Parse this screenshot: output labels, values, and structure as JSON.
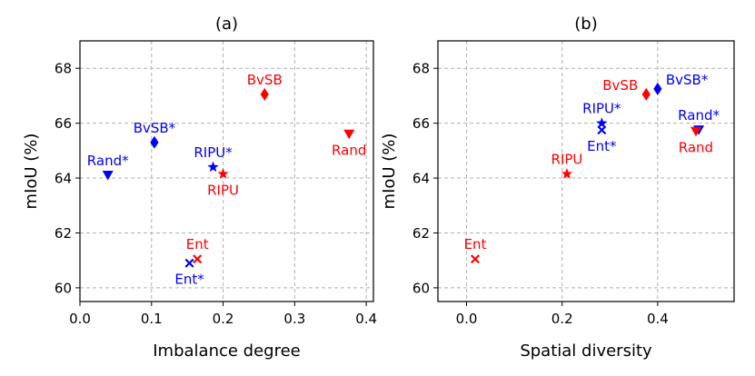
{
  "chart_data": [
    {
      "type": "scatter",
      "title": "(a)",
      "xlabel": "Imbalance degree",
      "ylabel": "mIoU (%)",
      "xlim": [
        0.0,
        0.41
      ],
      "ylim": [
        59.5,
        69.0
      ],
      "xticks": [
        0.0,
        0.1,
        0.2,
        0.3,
        0.4
      ],
      "xtick_labels": [
        "0.0",
        "0.1",
        "0.2",
        "0.3",
        "0.4"
      ],
      "yticks": [
        60,
        62,
        64,
        66,
        68
      ],
      "ytick_labels": [
        "60",
        "62",
        "64",
        "66",
        "68"
      ],
      "grid": true,
      "points": [
        {
          "label": "BvSB*",
          "x": 0.104,
          "y": 65.3,
          "color": "#0000ff",
          "marker": "diamond",
          "label_pos": "above"
        },
        {
          "label": "Rand*",
          "x": 0.039,
          "y": 64.1,
          "color": "#0000ff",
          "marker": "triangle-down",
          "label_pos": "above"
        },
        {
          "label": "RIPU*",
          "x": 0.186,
          "y": 64.4,
          "color": "#0000ff",
          "marker": "star",
          "label_pos": "above"
        },
        {
          "label": "Ent*",
          "x": 0.153,
          "y": 60.9,
          "color": "#0000ff",
          "marker": "x",
          "label_pos": "below"
        },
        {
          "label": "BvSB",
          "x": 0.258,
          "y": 67.05,
          "color": "#ff0000",
          "marker": "diamond",
          "label_pos": "above"
        },
        {
          "label": "Rand",
          "x": 0.376,
          "y": 65.6,
          "color": "#ff0000",
          "marker": "triangle-down",
          "label_pos": "below"
        },
        {
          "label": "RIPU",
          "x": 0.2,
          "y": 64.15,
          "color": "#ff0000",
          "marker": "star",
          "label_pos": "below"
        },
        {
          "label": "Ent",
          "x": 0.164,
          "y": 61.05,
          "color": "#ff0000",
          "marker": "x",
          "label_pos": "above"
        }
      ]
    },
    {
      "type": "scatter",
      "title": "(b)",
      "xlabel": "Spatial diversity",
      "ylabel": "mIoU (%)",
      "xlim": [
        -0.06,
        0.56
      ],
      "ylim": [
        59.5,
        69.0
      ],
      "xticks": [
        0.0,
        0.2,
        0.4
      ],
      "xtick_labels": [
        "0.0",
        "0.2",
        "0.4"
      ],
      "yticks": [
        60,
        62,
        64,
        66,
        68
      ],
      "ytick_labels": [
        "60",
        "62",
        "64",
        "66",
        "68"
      ],
      "grid": true,
      "points": [
        {
          "label": "BvSB*",
          "x": 0.4,
          "y": 67.25,
          "color": "#0000ff",
          "marker": "diamond",
          "label_pos": "right"
        },
        {
          "label": "Rand*",
          "x": 0.486,
          "y": 65.75,
          "color": "#0000ff",
          "marker": "triangle-down",
          "label_pos": "above"
        },
        {
          "label": "RIPU*",
          "x": 0.283,
          "y": 66.0,
          "color": "#0000ff",
          "marker": "star",
          "label_pos": "above"
        },
        {
          "label": "Ent*",
          "x": 0.283,
          "y": 65.75,
          "color": "#0000ff",
          "marker": "x",
          "label_pos": "below"
        },
        {
          "label": "BvSB",
          "x": 0.376,
          "y": 67.05,
          "color": "#ff0000",
          "marker": "diamond",
          "label_pos": "left"
        },
        {
          "label": "Rand",
          "x": 0.48,
          "y": 65.7,
          "color": "#ff0000",
          "marker": "triangle-down",
          "label_pos": "below"
        },
        {
          "label": "RIPU",
          "x": 0.21,
          "y": 64.15,
          "color": "#ff0000",
          "marker": "star",
          "label_pos": "above"
        },
        {
          "label": "Ent",
          "x": 0.018,
          "y": 61.05,
          "color": "#ff0000",
          "marker": "x",
          "label_pos": "above"
        }
      ]
    }
  ]
}
